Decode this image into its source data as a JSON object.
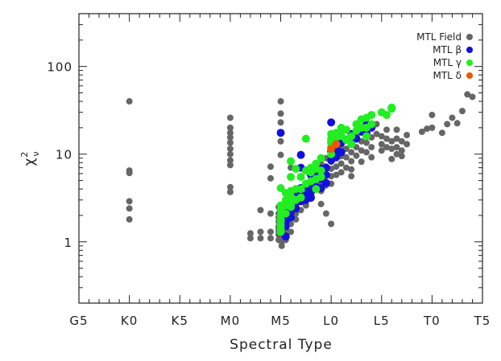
{
  "chart_data": {
    "type": "scatter",
    "title": "",
    "xlabel": "Spectral Type",
    "ylabel": "χ²ν",
    "ylabel_parts": {
      "symbol": "χ",
      "sup": "2",
      "sub": "ν"
    },
    "x_index": "0 = G5, 5 = K0, 10 = K5, 15 = M0, 20 = M5, 25 = L0, 30 = L5, 35 = T0, 40 = T5",
    "xlim": [
      0,
      40
    ],
    "ylim": [
      0.2,
      400
    ],
    "yscale": "log",
    "x_ticks": [
      {
        "value": 0,
        "label": "G5"
      },
      {
        "value": 5,
        "label": "K0"
      },
      {
        "value": 10,
        "label": "K5"
      },
      {
        "value": 15,
        "label": "M0"
      },
      {
        "value": 20,
        "label": "M5"
      },
      {
        "value": 25,
        "label": "L0"
      },
      {
        "value": 30,
        "label": "L5"
      },
      {
        "value": 35,
        "label": "T0"
      },
      {
        "value": 40,
        "label": "T5"
      }
    ],
    "y_ticks": [
      {
        "value": 1,
        "label": "1"
      },
      {
        "value": 10,
        "label": "10"
      },
      {
        "value": 100,
        "label": "100"
      }
    ],
    "grid": false,
    "legend_position": "top-right",
    "series": [
      {
        "name": "MTL Field",
        "color": "#666666",
        "points": [
          [
            5,
            40
          ],
          [
            5,
            6.5
          ],
          [
            5,
            6.1
          ],
          [
            5,
            2.9
          ],
          [
            5,
            2.4
          ],
          [
            5,
            1.8
          ],
          [
            15,
            26
          ],
          [
            15,
            20
          ],
          [
            15,
            17.5
          ],
          [
            15,
            15.5
          ],
          [
            15,
            13.5
          ],
          [
            15,
            11.5
          ],
          [
            15,
            10
          ],
          [
            15,
            8.5
          ],
          [
            15,
            7.5
          ],
          [
            15,
            4.2
          ],
          [
            15,
            3.7
          ],
          [
            17,
            1.25
          ],
          [
            17,
            1.1
          ],
          [
            18,
            2.3
          ],
          [
            18,
            1.3
          ],
          [
            18,
            1.1
          ],
          [
            19,
            7.2
          ],
          [
            19,
            5.3
          ],
          [
            19,
            2.1
          ],
          [
            19,
            1.3
          ],
          [
            19,
            1.1
          ],
          [
            20,
            40
          ],
          [
            20,
            29
          ],
          [
            20,
            23
          ],
          [
            20,
            17.5
          ],
          [
            20,
            14
          ],
          [
            20,
            9.8
          ],
          [
            19.8,
            2.5
          ],
          [
            19.8,
            2.1
          ],
          [
            19.8,
            1.9
          ],
          [
            19.8,
            1.7
          ],
          [
            19.8,
            1.5
          ],
          [
            19.8,
            1.4
          ],
          [
            19.8,
            1.3
          ],
          [
            19.8,
            1.2
          ],
          [
            19.8,
            1.05
          ],
          [
            20.1,
            1.9
          ],
          [
            20.1,
            1.6
          ],
          [
            20.1,
            1.4
          ],
          [
            20.1,
            1.25
          ],
          [
            20.1,
            1.15
          ],
          [
            20.1,
            1.0
          ],
          [
            20.1,
            0.9
          ],
          [
            20.5,
            1.8
          ],
          [
            20.5,
            1.4
          ],
          [
            20.5,
            1.2
          ],
          [
            20.5,
            1.05
          ],
          [
            21,
            7.0
          ],
          [
            21,
            2.7
          ],
          [
            21,
            2.3
          ],
          [
            21,
            1.9
          ],
          [
            21,
            1.6
          ],
          [
            21,
            1.3
          ],
          [
            21.5,
            2.5
          ],
          [
            21.5,
            2.1
          ],
          [
            21.5,
            1.8
          ],
          [
            22,
            3.5
          ],
          [
            22,
            2.9
          ],
          [
            22,
            2.3
          ],
          [
            22.5,
            3.2
          ],
          [
            22.5,
            2.6
          ],
          [
            23,
            5.5
          ],
          [
            23,
            4.0
          ],
          [
            23,
            3.1
          ],
          [
            23.5,
            5.6
          ],
          [
            23.5,
            4.5
          ],
          [
            24,
            7.8
          ],
          [
            24,
            6.0
          ],
          [
            24,
            4.7
          ],
          [
            24,
            3.8
          ],
          [
            24,
            2.7
          ],
          [
            24.5,
            9.0
          ],
          [
            24.5,
            7.2
          ],
          [
            24.5,
            5.7
          ],
          [
            24.5,
            4.4
          ],
          [
            24.5,
            2.1
          ],
          [
            25,
            10.2
          ],
          [
            25,
            8.2
          ],
          [
            25,
            6.8
          ],
          [
            25,
            5.6
          ],
          [
            25,
            4.6
          ],
          [
            25,
            1.6
          ],
          [
            25.5,
            14
          ],
          [
            25.5,
            11
          ],
          [
            25.5,
            9
          ],
          [
            25.5,
            7.2
          ],
          [
            25.5,
            5.8
          ],
          [
            26,
            12
          ],
          [
            26,
            9.5
          ],
          [
            26,
            7.8
          ],
          [
            26,
            6.2
          ],
          [
            26.5,
            15
          ],
          [
            26.5,
            11.5
          ],
          [
            26.5,
            9.2
          ],
          [
            26.5,
            7.0
          ],
          [
            27,
            13.5
          ],
          [
            27,
            10.5
          ],
          [
            27,
            8.3
          ],
          [
            27,
            6.7
          ],
          [
            27,
            5.6
          ],
          [
            27.5,
            16
          ],
          [
            27.5,
            12
          ],
          [
            27.5,
            9.6
          ],
          [
            28,
            18
          ],
          [
            28,
            14
          ],
          [
            28,
            11
          ],
          [
            28,
            8.2
          ],
          [
            28.5,
            22
          ],
          [
            28.5,
            17
          ],
          [
            28.5,
            13.5
          ],
          [
            28.5,
            10.5
          ],
          [
            29,
            20
          ],
          [
            29,
            15.5
          ],
          [
            29,
            12
          ],
          [
            29,
            9.2
          ],
          [
            29.5,
            22
          ],
          [
            29.5,
            17
          ],
          [
            30,
            16
          ],
          [
            30,
            13
          ],
          [
            30,
            11
          ],
          [
            30.5,
            19
          ],
          [
            30.5,
            15
          ],
          [
            30.5,
            12
          ],
          [
            31,
            14
          ],
          [
            31,
            11.5
          ],
          [
            31,
            8.8
          ],
          [
            31.5,
            19
          ],
          [
            31.5,
            15
          ],
          [
            31.5,
            12
          ],
          [
            31.5,
            10
          ],
          [
            32,
            14
          ],
          [
            32,
            11
          ],
          [
            32,
            9.5
          ],
          [
            32.5,
            16.5
          ],
          [
            32.5,
            13
          ],
          [
            34,
            18
          ],
          [
            34.5,
            19.5
          ],
          [
            35,
            20
          ],
          [
            35,
            28
          ],
          [
            36,
            17.5
          ],
          [
            36.5,
            22
          ],
          [
            37,
            26
          ],
          [
            37.5,
            22.5
          ],
          [
            38,
            31
          ],
          [
            38.5,
            48
          ],
          [
            39,
            45
          ]
        ]
      },
      {
        "name": "MTL β",
        "color": "#1010dd",
        "points": [
          [
            20,
            17.5
          ],
          [
            20,
            2.3
          ],
          [
            20,
            2.0
          ],
          [
            20,
            1.8
          ],
          [
            20,
            1.6
          ],
          [
            20,
            1.4
          ],
          [
            20,
            1.3
          ],
          [
            20.5,
            2.2
          ],
          [
            20.5,
            1.9
          ],
          [
            20.5,
            1.7
          ],
          [
            20.5,
            1.5
          ],
          [
            20.5,
            1.15
          ],
          [
            21,
            3.2
          ],
          [
            21,
            2.6
          ],
          [
            21,
            2.2
          ],
          [
            21,
            1.9
          ],
          [
            21.5,
            3.4
          ],
          [
            21.5,
            2.8
          ],
          [
            21.5,
            2.4
          ],
          [
            22,
            9.8
          ],
          [
            22,
            7.0
          ],
          [
            22,
            4.1
          ],
          [
            22,
            3.3
          ],
          [
            22,
            2.9
          ],
          [
            22.5,
            6.5
          ],
          [
            22.5,
            4.2
          ],
          [
            22.5,
            3.4
          ],
          [
            22.5,
            3.0
          ],
          [
            23,
            5.8
          ],
          [
            23,
            4.6
          ],
          [
            23,
            3.7
          ],
          [
            23,
            3.2
          ],
          [
            23.5,
            6.0
          ],
          [
            23.5,
            5.2
          ],
          [
            23.5,
            4.2
          ],
          [
            24,
            6.8
          ],
          [
            24,
            5.2
          ],
          [
            24,
            4.1
          ],
          [
            24.5,
            7.0
          ],
          [
            24.5,
            5.8
          ],
          [
            24.5,
            4.7
          ],
          [
            25,
            23
          ],
          [
            25,
            10.8
          ],
          [
            25,
            8.5
          ],
          [
            25.5,
            12
          ],
          [
            25.5,
            10
          ],
          [
            25.5,
            9.2
          ],
          [
            26,
            13.5
          ],
          [
            26,
            10.5
          ],
          [
            27,
            17
          ],
          [
            27,
            14
          ],
          [
            27.5,
            15
          ],
          [
            28,
            18
          ],
          [
            28.5,
            22
          ],
          [
            28.5,
            17.5
          ],
          [
            29,
            20
          ]
        ]
      },
      {
        "name": "MTL γ",
        "color": "#22ee22",
        "points": [
          [
            20,
            4.1
          ],
          [
            20,
            2.6
          ],
          [
            20,
            2.3
          ],
          [
            20,
            2.0
          ],
          [
            20,
            1.8
          ],
          [
            20,
            1.7
          ],
          [
            20,
            1.55
          ],
          [
            20,
            1.4
          ],
          [
            20,
            1.3
          ],
          [
            20.5,
            3.6
          ],
          [
            20.5,
            3.0
          ],
          [
            20.5,
            2.6
          ],
          [
            20.5,
            2.1
          ],
          [
            21,
            3.3
          ],
          [
            21,
            2.7
          ],
          [
            21,
            2.5
          ],
          [
            21,
            8.3
          ],
          [
            21,
            5.5
          ],
          [
            21,
            3.8
          ],
          [
            21.5,
            4.0
          ],
          [
            21.5,
            6.8
          ],
          [
            21.5,
            3.0
          ],
          [
            22,
            4.0
          ],
          [
            22,
            5.5
          ],
          [
            22,
            3.2
          ],
          [
            22.5,
            15
          ],
          [
            22.5,
            4.6
          ],
          [
            22.5,
            6.5
          ],
          [
            23,
            7.0
          ],
          [
            23,
            6.2
          ],
          [
            23,
            4.9
          ],
          [
            23.5,
            7.8
          ],
          [
            23.5,
            6.8
          ],
          [
            23.5,
            5.2
          ],
          [
            23.5,
            4.0
          ],
          [
            24,
            9.0
          ],
          [
            24,
            6.5
          ],
          [
            24,
            5.5
          ],
          [
            25,
            13.5
          ],
          [
            25,
            12
          ],
          [
            25,
            15
          ],
          [
            25,
            10
          ],
          [
            25,
            14
          ],
          [
            25,
            17
          ],
          [
            25.5,
            17.5
          ],
          [
            25.5,
            15.5
          ],
          [
            25.5,
            13
          ],
          [
            26,
            20
          ],
          [
            26,
            18
          ],
          [
            26,
            16
          ],
          [
            26.5,
            19
          ],
          [
            26.5,
            14.5
          ],
          [
            27,
            16
          ],
          [
            27,
            13
          ],
          [
            27.5,
            22
          ],
          [
            27.5,
            18.5
          ],
          [
            28,
            25
          ],
          [
            28,
            20
          ],
          [
            28.5,
            26
          ],
          [
            28.5,
            20
          ],
          [
            28.5,
            16
          ],
          [
            29,
            22
          ],
          [
            29,
            28
          ],
          [
            30,
            30
          ],
          [
            30.5,
            28
          ],
          [
            31,
            33
          ],
          [
            31,
            34
          ]
        ]
      },
      {
        "name": "MTL δ",
        "color": "#ee5500",
        "points": [
          [
            25,
            11.5
          ],
          [
            25.5,
            13
          ]
        ]
      }
    ]
  }
}
